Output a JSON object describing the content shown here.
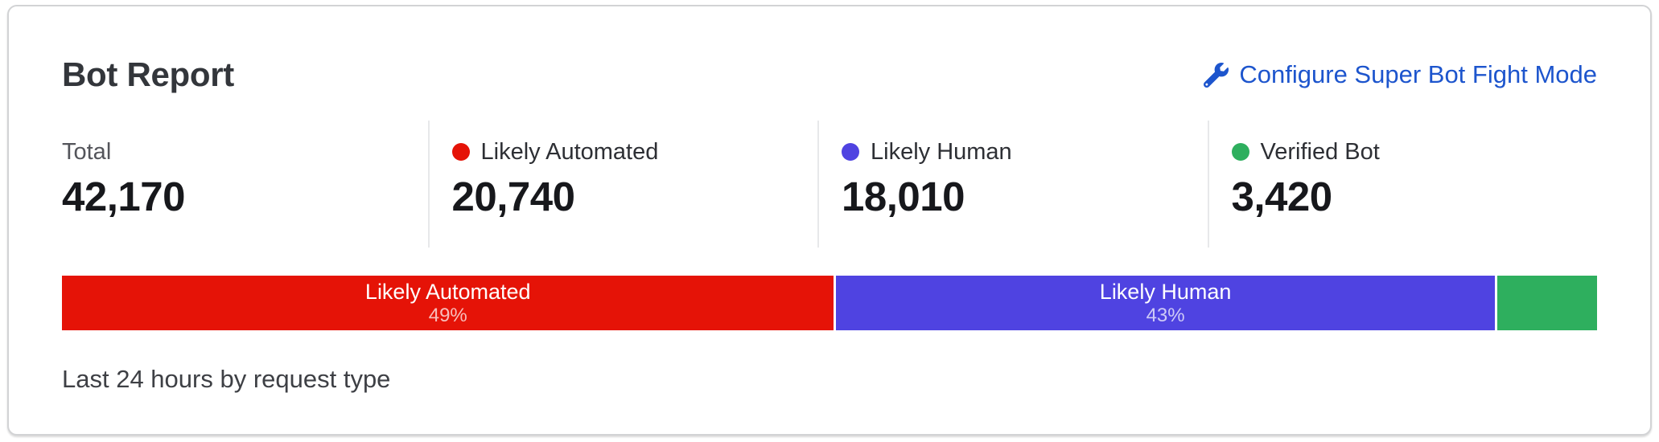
{
  "card": {
    "title": "Bot Report",
    "link_label": "Configure Super Bot Fight Mode",
    "link_color": "#1d55cd",
    "footer": "Last 24 hours by request type"
  },
  "stats": [
    {
      "label": "Total",
      "value": "42,170"
    },
    {
      "label": "Likely Automated",
      "value": "20,740",
      "dot_color": "#e51307"
    },
    {
      "label": "Likely Human",
      "value": "18,010",
      "dot_color": "#4f43e1"
    },
    {
      "label": "Verified Bot",
      "value": "3,420",
      "dot_color": "#2eaf5e"
    }
  ],
  "chart_data": {
    "type": "bar",
    "variant": "horizontal-stacked",
    "title": "Bot Report",
    "caption": "Last 24 hours by request type",
    "total": 42170,
    "segments": [
      {
        "name": "Likely Automated",
        "value": 20740,
        "percent_label": "49%",
        "color": "#e51307",
        "show_label": true
      },
      {
        "name": "Likely Human",
        "value": 18010,
        "percent_label": "43%",
        "color": "#4f43e1",
        "show_label": true
      },
      {
        "name": "Verified Bot",
        "value": 3420,
        "percent_label": "",
        "color": "#2eaf5e",
        "show_label": false
      }
    ]
  }
}
